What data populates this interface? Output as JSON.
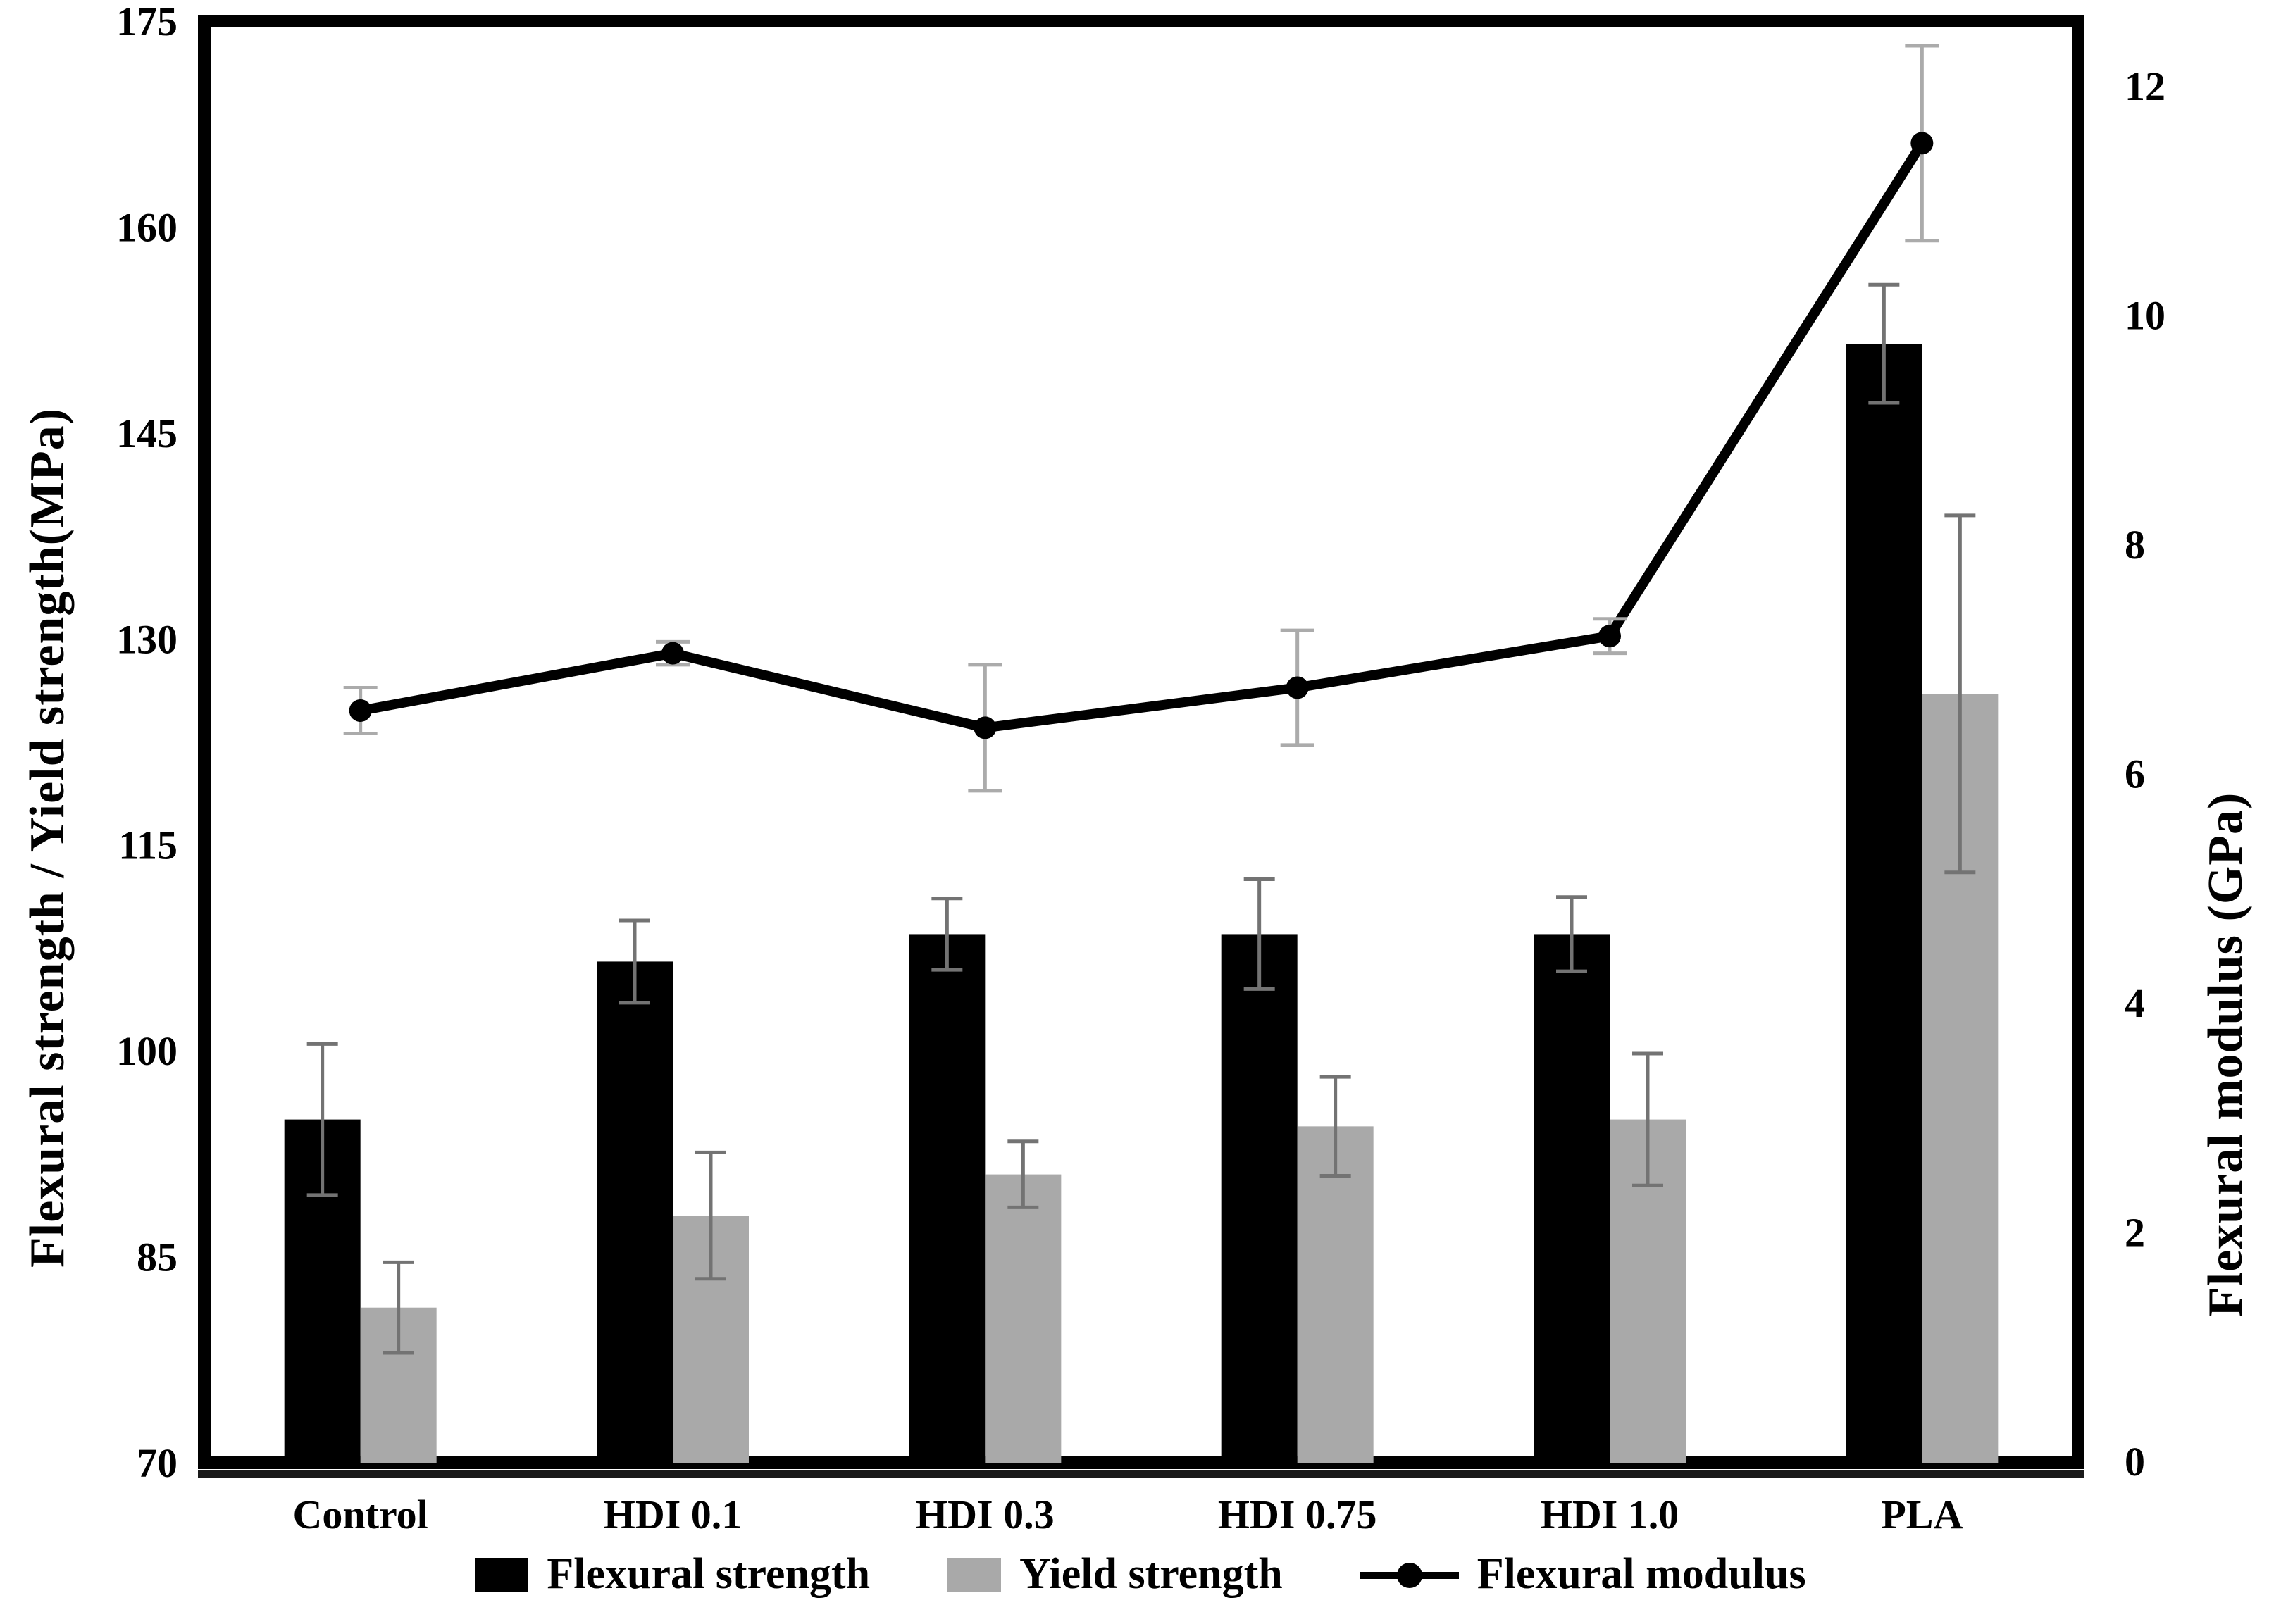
{
  "figure": {
    "left_axis_title": "Flexural strength / Yield strength(MPa)",
    "right_axis_title": "Flexural modulus (GPa)"
  },
  "chart_data": {
    "type": "bar",
    "subtype": "grouped-bars-with-line-overlay",
    "title": "",
    "categories": [
      "Control",
      "HDI 0.1",
      "HDI 0.3",
      "HDI 0.75",
      "HDI 1.0",
      "PLA"
    ],
    "left_axis": {
      "label": "Flexural strength / Yield strength(MPa)",
      "min": 70,
      "max": 175,
      "ticks": [
        70,
        85,
        100,
        115,
        130,
        145,
        160,
        175
      ]
    },
    "right_axis": {
      "label": "Flexural modulus (GPa)",
      "min": 0,
      "max": 12,
      "ticks": [
        0,
        2,
        4,
        6,
        8,
        10,
        12
      ]
    },
    "grid": "off",
    "legend_position": "bottom",
    "series": [
      {
        "name": "Flexural strength",
        "type": "bar",
        "axis": "left",
        "color": "#000000",
        "values": [
          95.0,
          106.5,
          108.5,
          108.5,
          108.5,
          151.5
        ],
        "errors": [
          5.5,
          3.0,
          2.6,
          4.0,
          2.7,
          4.3
        ]
      },
      {
        "name": "Yield strength",
        "type": "bar",
        "axis": "left",
        "color": "#a9a9a9",
        "values": [
          81.3,
          88.0,
          91.0,
          94.5,
          95.0,
          126.0
        ],
        "errors": [
          3.3,
          4.6,
          2.4,
          3.6,
          4.8,
          13.0
        ]
      },
      {
        "name": "Flexural modulus",
        "type": "line",
        "axis": "right",
        "color": "#000000",
        "values": [
          6.55,
          7.05,
          6.4,
          6.75,
          7.2,
          11.5
        ],
        "errors": [
          0.2,
          0.1,
          0.55,
          0.5,
          0.15,
          0.85
        ]
      }
    ]
  }
}
